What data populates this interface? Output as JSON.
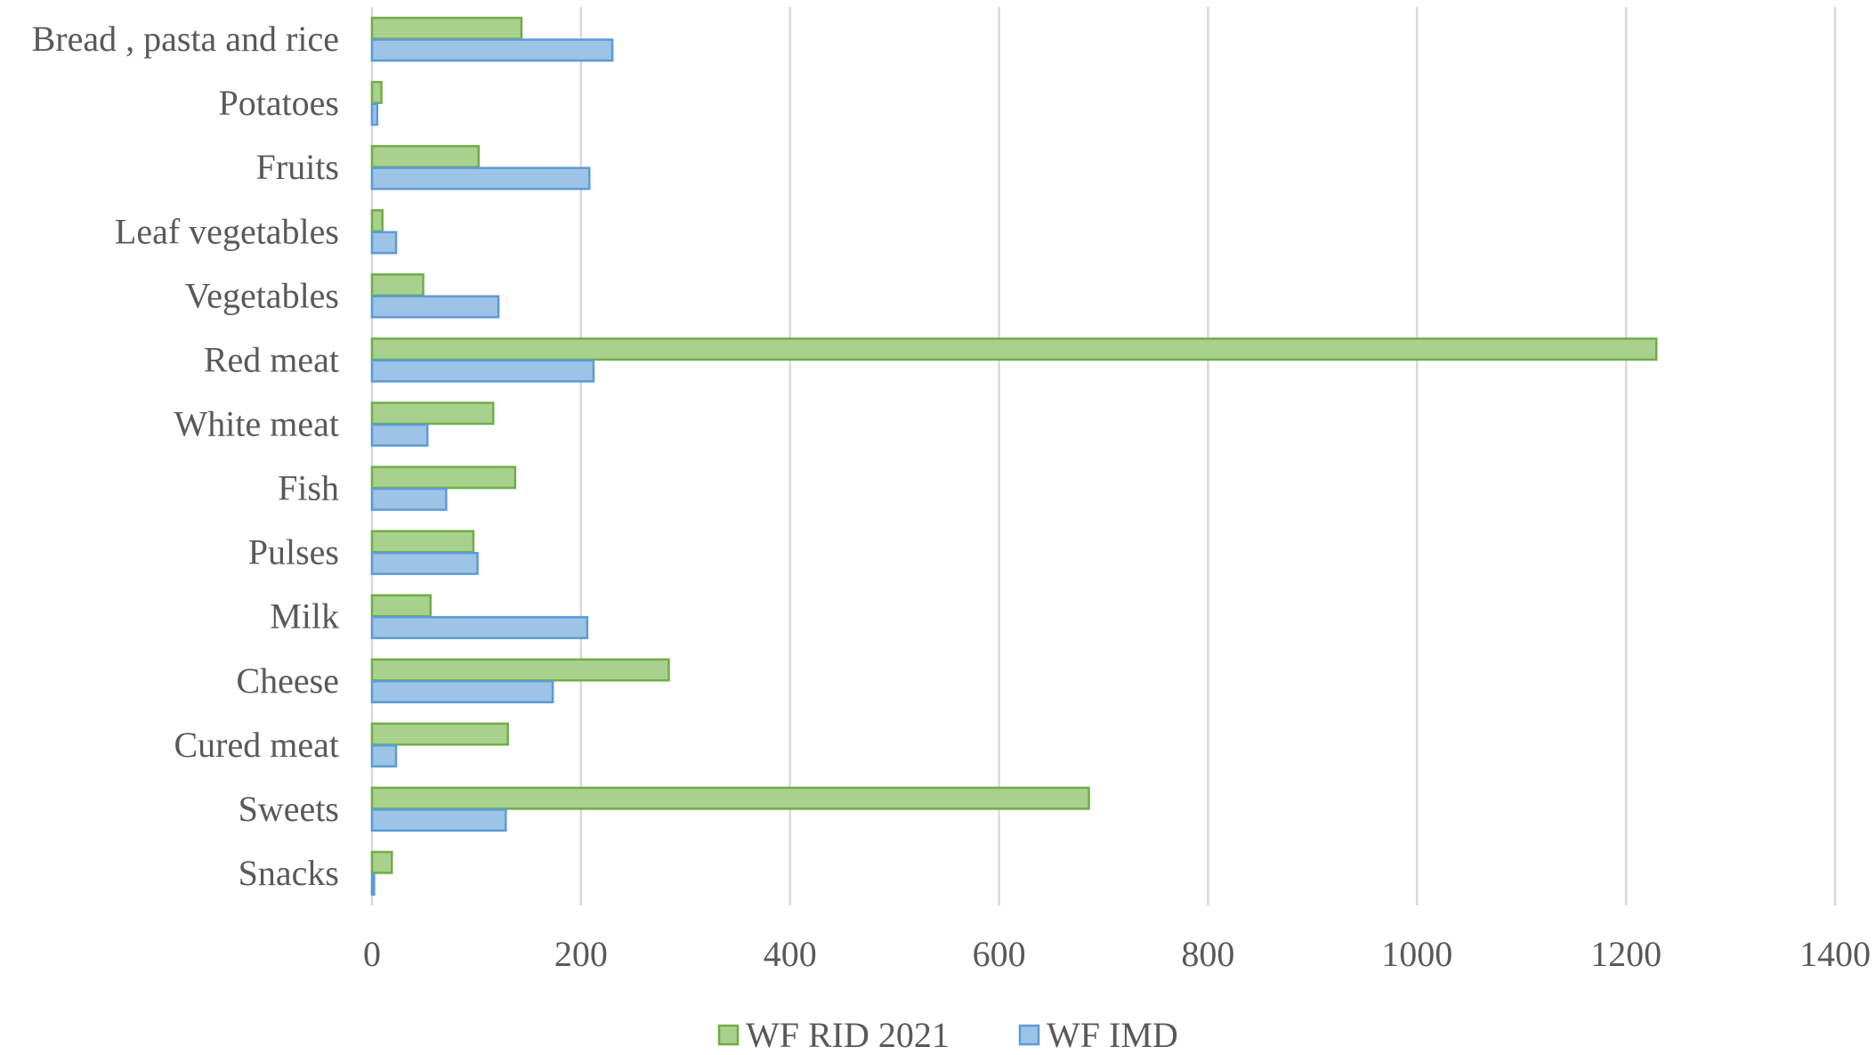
{
  "chart_data": {
    "type": "bar",
    "orientation": "horizontal",
    "categories": [
      "Bread , pasta and rice",
      "Potatoes",
      "Fruits",
      "Leaf vegetables",
      "Vegetables",
      "Red meat",
      "White meat",
      "Fish",
      "Pulses",
      "Milk",
      "Cheese",
      "Cured meat",
      "Sweets",
      "Snacks"
    ],
    "series": [
      {
        "name": "WF RID 2021",
        "color": "#a9d18e",
        "border": "#70ad47",
        "values": [
          143,
          9,
          102,
          10,
          49,
          1229,
          116,
          137,
          97,
          56,
          284,
          130,
          686,
          19
        ]
      },
      {
        "name": "WF IMD",
        "color": "#9dc3e6",
        "border": "#5b9bd5",
        "values": [
          230,
          5,
          208,
          23,
          121,
          212,
          53,
          71,
          101,
          206,
          173,
          23,
          128,
          2
        ]
      }
    ],
    "xlim": [
      0,
      1400
    ],
    "xticks": [
      "0",
      "200",
      "400",
      "600",
      "800",
      "1000",
      "1200",
      "1400"
    ],
    "title": "",
    "xlabel": "",
    "ylabel": "",
    "grid": "vertical",
    "legend": "bottom-center"
  }
}
